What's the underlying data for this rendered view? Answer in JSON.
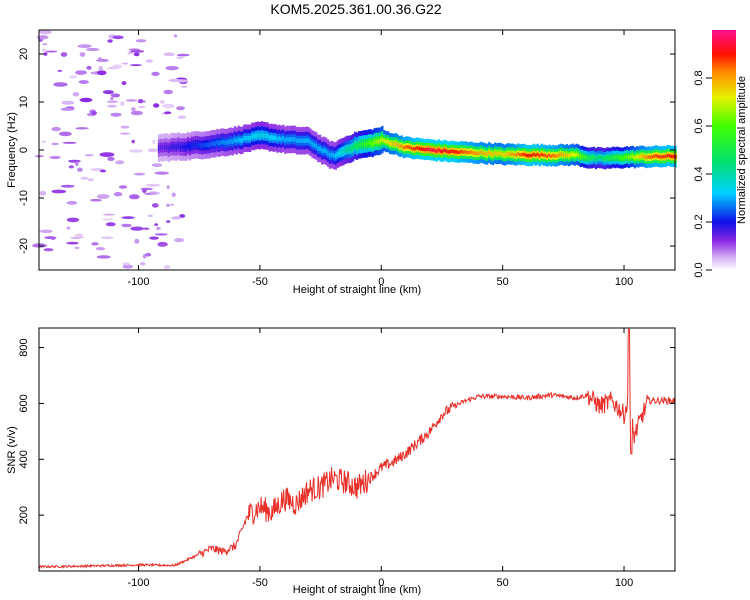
{
  "title": "KOM5.2025.361.00.36.G22",
  "chart_data": [
    {
      "type": "heatmap",
      "title": "KOM5.2025.361.00.36.G22",
      "xlabel": "Height of straight line (km)",
      "ylabel": "Frequency (Hz)",
      "xlim": [
        -141,
        121
      ],
      "ylim": [
        -25,
        25
      ],
      "xticks": [
        "-100",
        "-50",
        "0",
        "50",
        "100"
      ],
      "yticks": [
        "-20",
        "-10",
        "0",
        "10",
        "20"
      ],
      "colorbar": {
        "label": "Normalized spectral amplitude",
        "range": [
          0,
          1
        ],
        "ticks": [
          "0.0",
          "0.2",
          "0.4",
          "0.6",
          "0.8"
        ]
      },
      "ridge": {
        "description_points_x": [
          -90,
          -80,
          -70,
          -60,
          -50,
          -40,
          -30,
          -25,
          -20,
          -15,
          -10,
          -5,
          0,
          10,
          20,
          30,
          40,
          50,
          60,
          70,
          80,
          85,
          90,
          100,
          110,
          121
        ],
        "freq_hz": [
          0.5,
          0.8,
          1.3,
          2.0,
          3.0,
          2.2,
          1.8,
          0.0,
          -1.3,
          0.0,
          1.0,
          1.4,
          2.0,
          0.5,
          0.0,
          -0.4,
          -0.6,
          -0.9,
          -1.0,
          -1.1,
          -1.0,
          -1.6,
          -1.8,
          -1.5,
          -1.4,
          -1.3
        ],
        "amplitude": [
          0.15,
          0.2,
          0.25,
          0.3,
          0.35,
          0.3,
          0.3,
          0.3,
          0.3,
          0.4,
          0.5,
          0.6,
          0.7,
          0.85,
          0.95,
          0.9,
          0.8,
          0.75,
          0.9,
          0.85,
          0.7,
          0.5,
          0.45,
          0.6,
          0.85,
          0.9
        ]
      }
    },
    {
      "type": "line",
      "xlabel": "Height of straight line (km)",
      "ylabel": "SNR (v/v)",
      "xlim": [
        -141,
        121
      ],
      "ylim": [
        0,
        870
      ],
      "xticks": [
        "-100",
        "-50",
        "0",
        "50",
        "100"
      ],
      "yticks": [
        "200",
        "400",
        "600",
        "800"
      ],
      "series": [
        {
          "name": "SNR",
          "color": "#e8302a",
          "x": [
            -141,
            -120,
            -100,
            -85,
            -80,
            -75,
            -70,
            -65,
            -60,
            -55,
            -50,
            -45,
            -40,
            -35,
            -30,
            -25,
            -20,
            -15,
            -10,
            -5,
            0,
            5,
            10,
            15,
            20,
            25,
            30,
            35,
            40,
            50,
            60,
            70,
            80,
            85,
            90,
            95,
            100,
            102,
            104,
            110,
            121
          ],
          "y": [
            15,
            18,
            22,
            20,
            40,
            60,
            80,
            70,
            90,
            200,
            230,
            210,
            260,
            240,
            290,
            300,
            330,
            320,
            300,
            330,
            370,
            390,
            420,
            460,
            500,
            560,
            590,
            610,
            625,
            625,
            620,
            630,
            620,
            630,
            590,
            610,
            560,
            620,
            480,
            610,
            610
          ]
        }
      ]
    }
  ]
}
